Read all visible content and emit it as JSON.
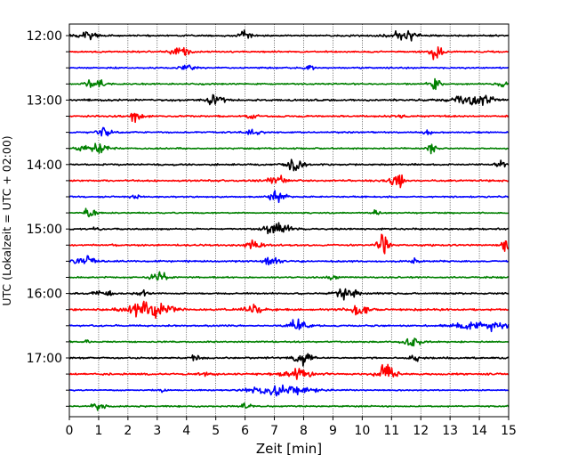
{
  "chart_data": {
    "type": "line",
    "title": "",
    "xlabel": "Zeit  [min]",
    "ylabel": "UTC (Lokalzeit = UTC + 02:00)",
    "xlim": [
      0,
      15
    ],
    "x_ticks": [
      "0",
      "1",
      "2",
      "3",
      "4",
      "5",
      "6",
      "7",
      "8",
      "9",
      "10",
      "11",
      "12",
      "13",
      "14",
      "15"
    ],
    "y_ticks": [
      "12:00",
      "13:00",
      "14:00",
      "15:00",
      "16:00",
      "17:00"
    ],
    "grid": "vertical dotted at each minute",
    "series_colors": [
      "#000000",
      "#ff0000",
      "#0000ff",
      "#008000"
    ],
    "traces": [
      {
        "hour_label": "12:00",
        "color": "#000000",
        "noise": 0.9,
        "events": [
          {
            "t": 0.6,
            "amp": 5,
            "w": 0.3
          },
          {
            "t": 6.0,
            "amp": 7,
            "w": 0.2
          },
          {
            "t": 11.4,
            "amp": 6,
            "w": 0.5
          }
        ]
      },
      {
        "hour_label": "",
        "color": "#ff0000",
        "noise": 0.9,
        "events": [
          {
            "t": 3.8,
            "amp": 6,
            "w": 0.3
          },
          {
            "t": 12.5,
            "amp": 8,
            "w": 0.25
          }
        ]
      },
      {
        "hour_label": "",
        "color": "#0000ff",
        "noise": 0.8,
        "events": [
          {
            "t": 4.1,
            "amp": 3,
            "w": 0.3
          },
          {
            "t": 8.2,
            "amp": 2.5,
            "w": 0.2
          }
        ]
      },
      {
        "hour_label": "",
        "color": "#008000",
        "noise": 0.8,
        "events": [
          {
            "t": 0.9,
            "amp": 5,
            "w": 0.3
          },
          {
            "t": 12.5,
            "amp": 9,
            "w": 0.2
          },
          {
            "t": 14.8,
            "amp": 3,
            "w": 0.2
          }
        ]
      },
      {
        "hour_label": "13:00",
        "color": "#000000",
        "noise": 1.0,
        "events": [
          {
            "t": 5.0,
            "amp": 7,
            "w": 0.3
          },
          {
            "t": 13.8,
            "amp": 6,
            "w": 0.7
          }
        ]
      },
      {
        "hour_label": "",
        "color": "#ff0000",
        "noise": 0.9,
        "events": [
          {
            "t": 2.3,
            "amp": 6,
            "w": 0.3
          },
          {
            "t": 6.2,
            "amp": 3,
            "w": 0.2
          },
          {
            "t": 11.4,
            "amp": 2.5,
            "w": 0.2
          }
        ]
      },
      {
        "hour_label": "",
        "color": "#0000ff",
        "noise": 0.8,
        "events": [
          {
            "t": 1.2,
            "amp": 7,
            "w": 0.2
          },
          {
            "t": 6.3,
            "amp": 3,
            "w": 0.3
          },
          {
            "t": 12.2,
            "amp": 2.5,
            "w": 0.2
          }
        ]
      },
      {
        "hour_label": "",
        "color": "#008000",
        "noise": 0.8,
        "events": [
          {
            "t": 0.8,
            "amp": 5,
            "w": 0.5
          },
          {
            "t": 12.4,
            "amp": 7,
            "w": 0.15
          }
        ]
      },
      {
        "hour_label": "14:00",
        "color": "#000000",
        "noise": 0.9,
        "events": [
          {
            "t": 7.7,
            "amp": 7,
            "w": 0.3
          },
          {
            "t": 14.8,
            "amp": 5,
            "w": 0.2
          }
        ]
      },
      {
        "hour_label": "",
        "color": "#ff0000",
        "noise": 1.0,
        "events": [
          {
            "t": 7.1,
            "amp": 5,
            "w": 0.3
          },
          {
            "t": 11.2,
            "amp": 8,
            "w": 0.25
          }
        ]
      },
      {
        "hour_label": "",
        "color": "#0000ff",
        "noise": 0.8,
        "events": [
          {
            "t": 2.3,
            "amp": 3,
            "w": 0.2
          },
          {
            "t": 7.1,
            "amp": 8,
            "w": 0.25
          }
        ]
      },
      {
        "hour_label": "",
        "color": "#008000",
        "noise": 0.7,
        "events": [
          {
            "t": 0.7,
            "amp": 6,
            "w": 0.2
          },
          {
            "t": 10.5,
            "amp": 3,
            "w": 0.15
          }
        ]
      },
      {
        "hour_label": "15:00",
        "color": "#000000",
        "noise": 0.9,
        "events": [
          {
            "t": 0.9,
            "amp": 5,
            "w": 0.1
          },
          {
            "t": 7.1,
            "amp": 7,
            "w": 0.4
          }
        ]
      },
      {
        "hour_label": "",
        "color": "#ff0000",
        "noise": 1.0,
        "events": [
          {
            "t": 6.3,
            "amp": 6,
            "w": 0.3
          },
          {
            "t": 10.7,
            "amp": 12,
            "w": 0.2
          },
          {
            "t": 14.9,
            "amp": 7,
            "w": 0.15
          }
        ]
      },
      {
        "hour_label": "",
        "color": "#0000ff",
        "noise": 0.9,
        "events": [
          {
            "t": 0.5,
            "amp": 6,
            "w": 0.4
          },
          {
            "t": 6.9,
            "amp": 6,
            "w": 0.25
          },
          {
            "t": 11.8,
            "amp": 4,
            "w": 0.15
          }
        ]
      },
      {
        "hour_label": "",
        "color": "#008000",
        "noise": 0.8,
        "events": [
          {
            "t": 3.1,
            "amp": 7,
            "w": 0.3
          },
          {
            "t": 9.0,
            "amp": 2.5,
            "w": 0.2
          }
        ]
      },
      {
        "hour_label": "16:00",
        "color": "#000000",
        "noise": 0.9,
        "events": [
          {
            "t": 1.2,
            "amp": 5,
            "w": 0.3
          },
          {
            "t": 9.5,
            "amp": 7,
            "w": 0.4
          },
          {
            "t": 2.5,
            "amp": 3,
            "w": 0.2
          }
        ]
      },
      {
        "hour_label": "",
        "color": "#ff0000",
        "noise": 1.1,
        "events": [
          {
            "t": 2.7,
            "amp": 9,
            "w": 0.7
          },
          {
            "t": 6.3,
            "amp": 5,
            "w": 0.3
          },
          {
            "t": 9.9,
            "amp": 7,
            "w": 0.3
          }
        ]
      },
      {
        "hour_label": "",
        "color": "#0000ff",
        "noise": 0.9,
        "events": [
          {
            "t": 7.8,
            "amp": 8,
            "w": 0.3
          },
          {
            "t": 14.0,
            "amp": 6,
            "w": 0.8
          }
        ]
      },
      {
        "hour_label": "",
        "color": "#008000",
        "noise": 0.8,
        "events": [
          {
            "t": 11.7,
            "amp": 7,
            "w": 0.3
          },
          {
            "t": 0.6,
            "amp": 2.5,
            "w": 0.1
          }
        ]
      },
      {
        "hour_label": "17:00",
        "color": "#000000",
        "noise": 0.9,
        "events": [
          {
            "t": 8.0,
            "amp": 7,
            "w": 0.3
          },
          {
            "t": 4.3,
            "amp": 3,
            "w": 0.2
          },
          {
            "t": 11.8,
            "amp": 3,
            "w": 0.2
          }
        ]
      },
      {
        "hour_label": "",
        "color": "#ff0000",
        "noise": 1.0,
        "events": [
          {
            "t": 7.8,
            "amp": 6,
            "w": 0.6
          },
          {
            "t": 10.8,
            "amp": 11,
            "w": 0.3
          },
          {
            "t": 4.6,
            "amp": 3,
            "w": 0.2
          }
        ]
      },
      {
        "hour_label": "",
        "color": "#0000ff",
        "noise": 0.7,
        "events": [
          {
            "t": 7.2,
            "amp": 8,
            "w": 0.9
          },
          {
            "t": 3.2,
            "amp": 4,
            "w": 0.1
          }
        ]
      },
      {
        "hour_label": "",
        "color": "#008000",
        "noise": 0.8,
        "events": [
          {
            "t": 1.0,
            "amp": 6,
            "w": 0.2
          },
          {
            "t": 6.0,
            "amp": 4,
            "w": 0.2
          }
        ]
      }
    ]
  }
}
